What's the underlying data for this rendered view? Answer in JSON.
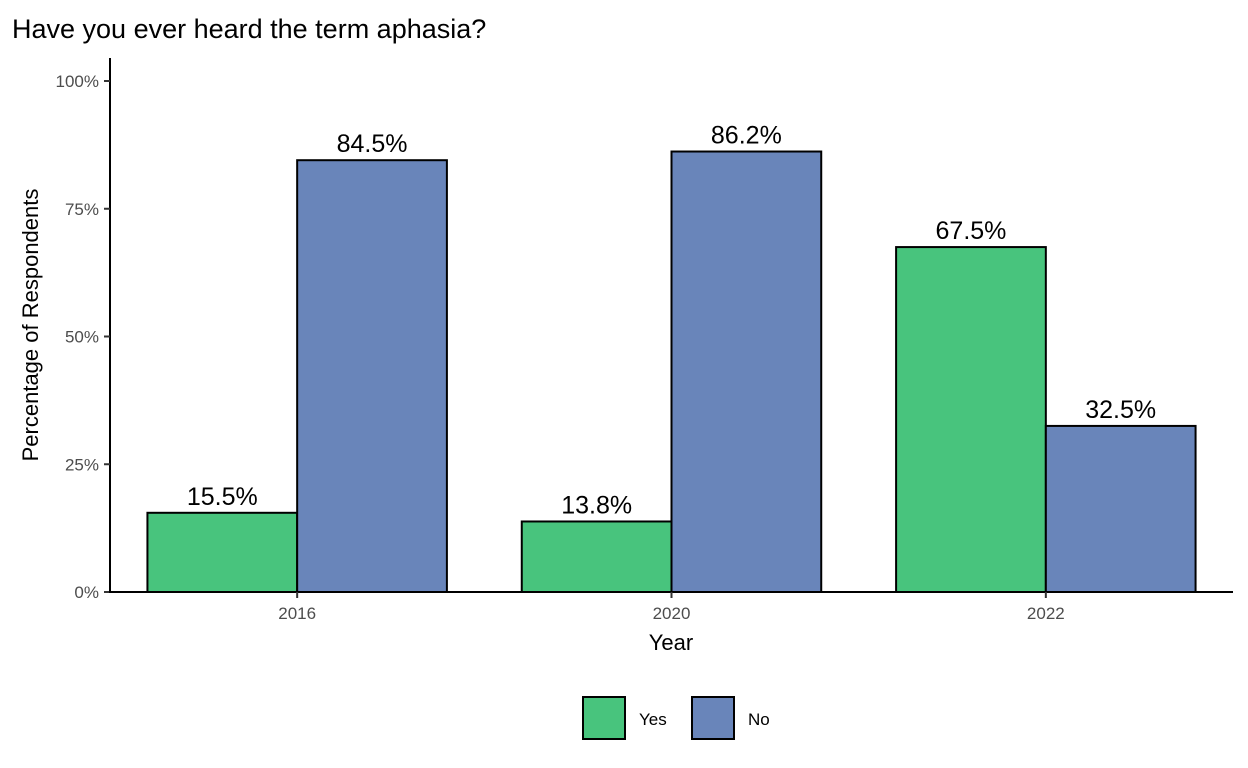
{
  "chart_data": {
    "type": "bar",
    "title": "Have you ever heard the term aphasia?",
    "xlabel": "Year",
    "ylabel": "Percentage of Respondents",
    "categories": [
      "2016",
      "2020",
      "2022"
    ],
    "series": [
      {
        "name": "Yes",
        "color": "#48C47D",
        "values": [
          15.5,
          13.8,
          67.5
        ],
        "labels": [
          "15.5%",
          "13.8%",
          "67.5%"
        ]
      },
      {
        "name": "No",
        "color": "#6985BA",
        "values": [
          84.5,
          86.2,
          32.5
        ],
        "labels": [
          "84.5%",
          "86.2%",
          "32.5%"
        ]
      }
    ],
    "ylim": [
      0,
      100
    ],
    "yticks": [
      {
        "value": 0,
        "label": "0%"
      },
      {
        "value": 25,
        "label": "25%"
      },
      {
        "value": 50,
        "label": "50%"
      },
      {
        "value": 75,
        "label": "75%"
      },
      {
        "value": 100,
        "label": "100%"
      }
    ],
    "grid": false,
    "legend_position": "bottom"
  }
}
